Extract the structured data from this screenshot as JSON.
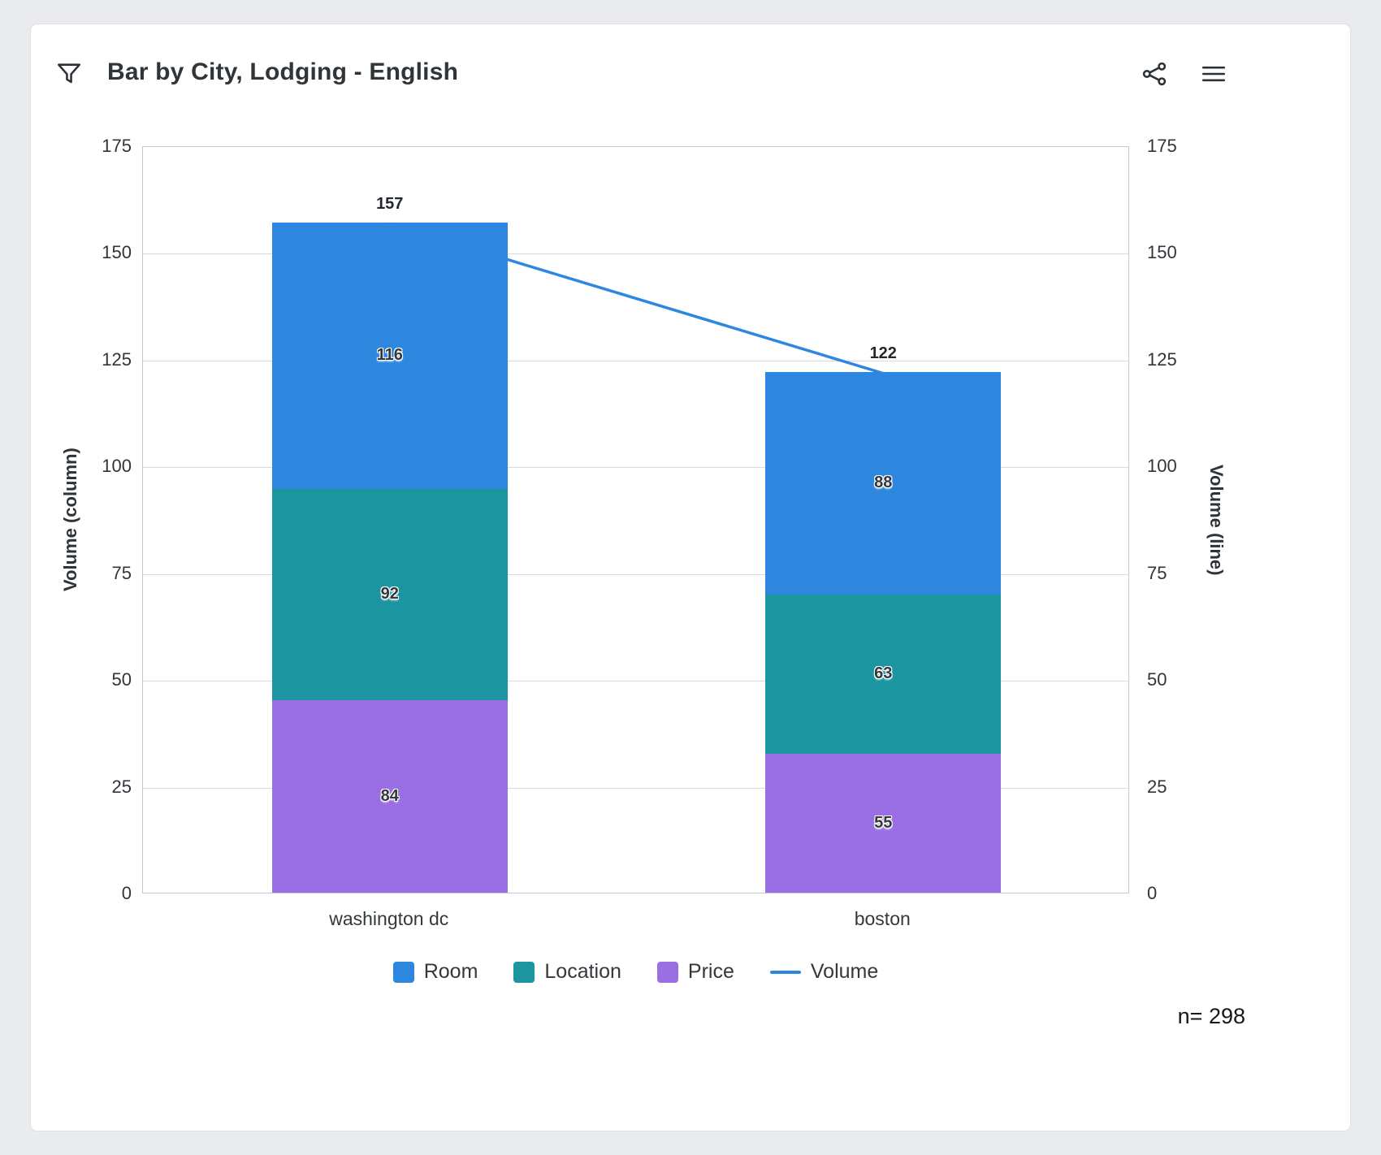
{
  "header": {
    "title": "Bar by City, Lodging - English"
  },
  "footer": {
    "sample_label": "n= 298"
  },
  "chart_data": {
    "type": "bar",
    "subtype": "stacked-bars-with-line-overlay",
    "categories": [
      "washington dc",
      "boston"
    ],
    "series": [
      {
        "name": "Room",
        "color": "#2d87de",
        "values": [
          116,
          88
        ]
      },
      {
        "name": "Location",
        "color": "#1b96a1",
        "values": [
          92,
          63
        ]
      },
      {
        "name": "Price",
        "color": "#9a6fe3",
        "values": [
          84,
          55
        ]
      }
    ],
    "line_series": {
      "name": "Volume",
      "color": "#2e87de",
      "values": [
        157,
        122
      ]
    },
    "totals": [
      157,
      122
    ],
    "title": "Bar by City, Lodging - English",
    "ylabel_left": "Volume (column)",
    "ylabel_right": "Volume (line)",
    "ylim": [
      0,
      175
    ],
    "ytick_step": 25,
    "grid": true,
    "legend_position": "bottom",
    "stack_scaling": "segments scaled so stacked bar height equals line total"
  }
}
